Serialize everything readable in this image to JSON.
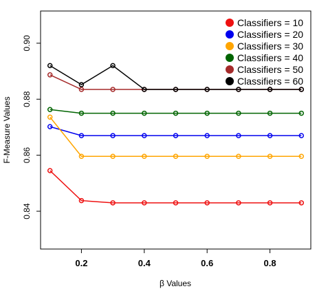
{
  "chart_data": {
    "type": "line",
    "title": "",
    "xlabel": "β Values",
    "ylabel": "F-Measure Values",
    "xlim": [
      0.07,
      0.93
    ],
    "ylim": [
      0.8265,
      0.9115
    ],
    "xticks": [
      0.2,
      0.4,
      0.6,
      0.8
    ],
    "xtick_labels": [
      "0.2",
      "0.4",
      "0.6",
      "0.8"
    ],
    "yticks": [
      0.84,
      0.86,
      0.88,
      0.9
    ],
    "ytick_labels": [
      "0.84",
      "0.86",
      "0.88",
      "0.90"
    ],
    "grid": false,
    "legend_position": "top-right",
    "x": [
      0.1,
      0.2,
      0.3,
      0.4,
      0.5,
      0.6,
      0.7,
      0.8,
      0.9
    ],
    "series": [
      {
        "name": "Classifiers = 10",
        "color": "#ee1111",
        "values": [
          0.8545,
          0.8438,
          0.843,
          0.843,
          0.843,
          0.843,
          0.843,
          0.843,
          0.843
        ]
      },
      {
        "name": "Classifiers = 20",
        "color": "#0000ee",
        "values": [
          0.8702,
          0.867,
          0.867,
          0.867,
          0.867,
          0.867,
          0.867,
          0.867,
          0.867
        ]
      },
      {
        "name": "Classifiers = 30",
        "color": "#ffa500",
        "values": [
          0.8736,
          0.8596,
          0.8596,
          0.8596,
          0.8596,
          0.8596,
          0.8596,
          0.8596,
          0.8596
        ]
      },
      {
        "name": "Classifiers = 40",
        "color": "#006400",
        "values": [
          0.8763,
          0.875,
          0.875,
          0.875,
          0.875,
          0.875,
          0.875,
          0.875,
          0.875
        ]
      },
      {
        "name": "Classifiers = 50",
        "color": "#a52a2a",
        "values": [
          0.8887,
          0.8835,
          0.8835,
          0.8835,
          0.8835,
          0.8835,
          0.8835,
          0.8835,
          0.8835
        ]
      },
      {
        "name": "Classifiers = 60",
        "color": "#000000",
        "values": [
          0.892,
          0.8852,
          0.892,
          0.8835,
          0.8835,
          0.8835,
          0.8835,
          0.8835,
          0.8835
        ]
      }
    ]
  }
}
